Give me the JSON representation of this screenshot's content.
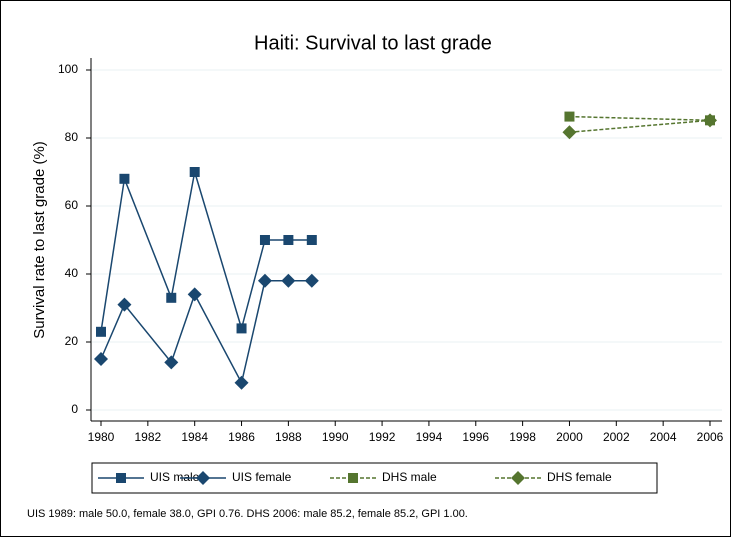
{
  "chart_data": {
    "type": "line",
    "title": "Haiti: Survival to last grade",
    "ylabel": "Survival rate to last grade (%)",
    "note": "UIS 1989: male 50.0, female 38.0, GPI 0.76. DHS 2006: male 85.2, female 85.2, GPI 1.00.",
    "x": [
      1980,
      1981,
      1983,
      1984,
      1986,
      1987,
      1988,
      1989,
      2000,
      2006
    ],
    "series": [
      {
        "name": "UIS male",
        "color": "#1a476f",
        "marker": "square",
        "dash": false,
        "values": [
          23,
          68,
          33,
          70,
          24,
          50,
          50,
          50,
          null,
          null
        ]
      },
      {
        "name": "UIS female",
        "color": "#1a476f",
        "marker": "diamond",
        "dash": false,
        "values": [
          15,
          31,
          14,
          34,
          8,
          38,
          38,
          38,
          null,
          null
        ]
      },
      {
        "name": "DHS male",
        "color": "#55752f",
        "marker": "square",
        "dash": true,
        "values": [
          null,
          null,
          null,
          null,
          null,
          null,
          null,
          null,
          86.3,
          85.2
        ]
      },
      {
        "name": "DHS female",
        "color": "#55752f",
        "marker": "diamond",
        "dash": true,
        "values": [
          null,
          null,
          null,
          null,
          null,
          null,
          null,
          null,
          81.7,
          85.2
        ]
      }
    ],
    "xlim": [
      1980,
      2006
    ],
    "xticks": [
      1980,
      1982,
      1984,
      1986,
      1988,
      1990,
      1992,
      1994,
      1996,
      1998,
      2000,
      2002,
      2004,
      2006
    ],
    "ylim": [
      0,
      100
    ],
    "yticks": [
      0,
      20,
      40,
      60,
      80,
      100
    ],
    "grid": true,
    "legend": "bottom"
  }
}
